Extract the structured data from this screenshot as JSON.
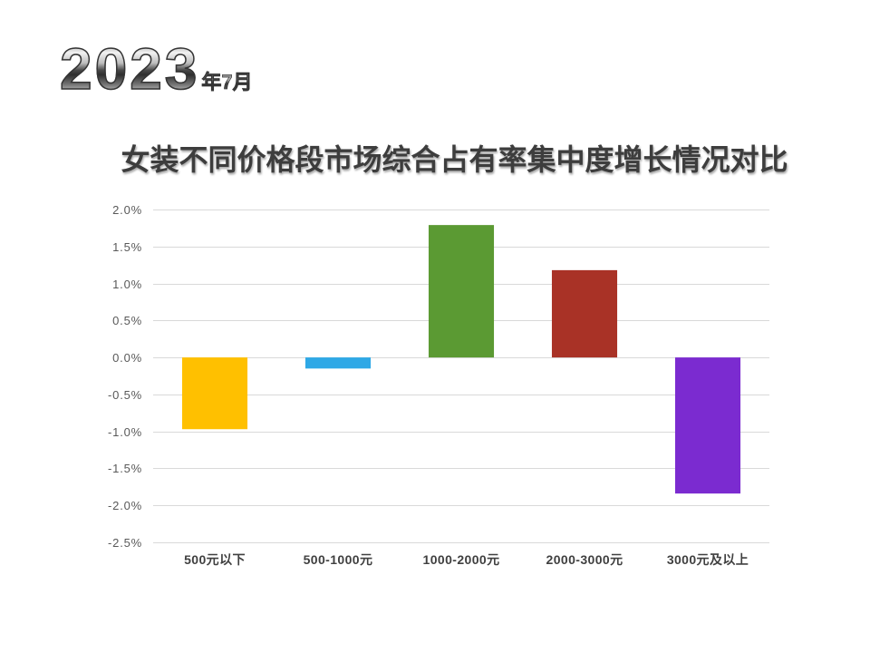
{
  "header": {
    "year": "2023",
    "year_suffix": "年7月"
  },
  "chart_data": {
    "type": "bar",
    "title": "女装不同价格段市场综合占有率集中度增长情况对比",
    "categories": [
      "500元以下",
      "500-1000元",
      "1000-2000元",
      "2000-3000元",
      "3000元及以上"
    ],
    "values": [
      -0.97,
      -0.15,
      1.79,
      1.18,
      -1.84
    ],
    "bar_colors": [
      "#FFC000",
      "#2EA8E6",
      "#5B9A33",
      "#A93226",
      "#7B2BD0"
    ],
    "ylim": [
      -2.5,
      2.0
    ],
    "yticks": [
      {
        "value": 2.0,
        "label": "2.0%"
      },
      {
        "value": 1.5,
        "label": "1.5%"
      },
      {
        "value": 1.0,
        "label": "1.0%"
      },
      {
        "value": 0.5,
        "label": "0.5%"
      },
      {
        "value": 0.0,
        "label": "0.0%"
      },
      {
        "value": -0.5,
        "label": "-0.5%"
      },
      {
        "value": -1.0,
        "label": "-1.0%"
      },
      {
        "value": -1.5,
        "label": "-1.5%"
      },
      {
        "value": -2.0,
        "label": "-2.0%"
      },
      {
        "value": -2.5,
        "label": "-2.5%"
      }
    ],
    "grid": true
  }
}
